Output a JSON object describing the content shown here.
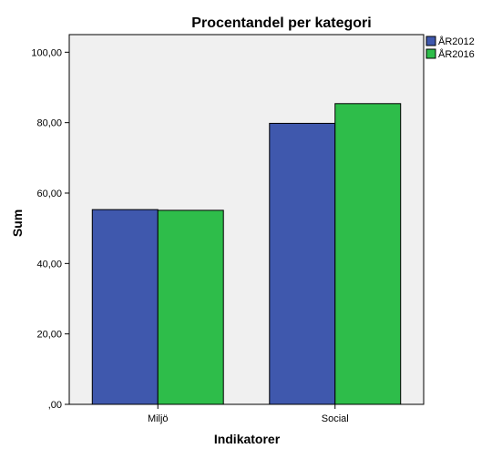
{
  "chart_data": {
    "type": "bar",
    "title": "Procentandel per kategori",
    "xlabel": "Indikatorer",
    "ylabel": "Sum",
    "categories": [
      "Miljö",
      "Social"
    ],
    "series": [
      {
        "name": "ÅR2012",
        "values": [
          55.3,
          79.8
        ],
        "color": "#3f58ad"
      },
      {
        "name": "ÅR2016",
        "values": [
          55.1,
          85.4
        ],
        "color": "#2ebd4a"
      }
    ],
    "ylim": [
      0,
      105
    ],
    "yticks": [
      0,
      20,
      40,
      60,
      80,
      100
    ],
    "ytick_labels": [
      ",00",
      "20,00",
      "40,00",
      "60,00",
      "80,00",
      "100,00"
    ],
    "grid": false,
    "legend_position": "top-right",
    "plot_background": "#f0f0f0"
  }
}
